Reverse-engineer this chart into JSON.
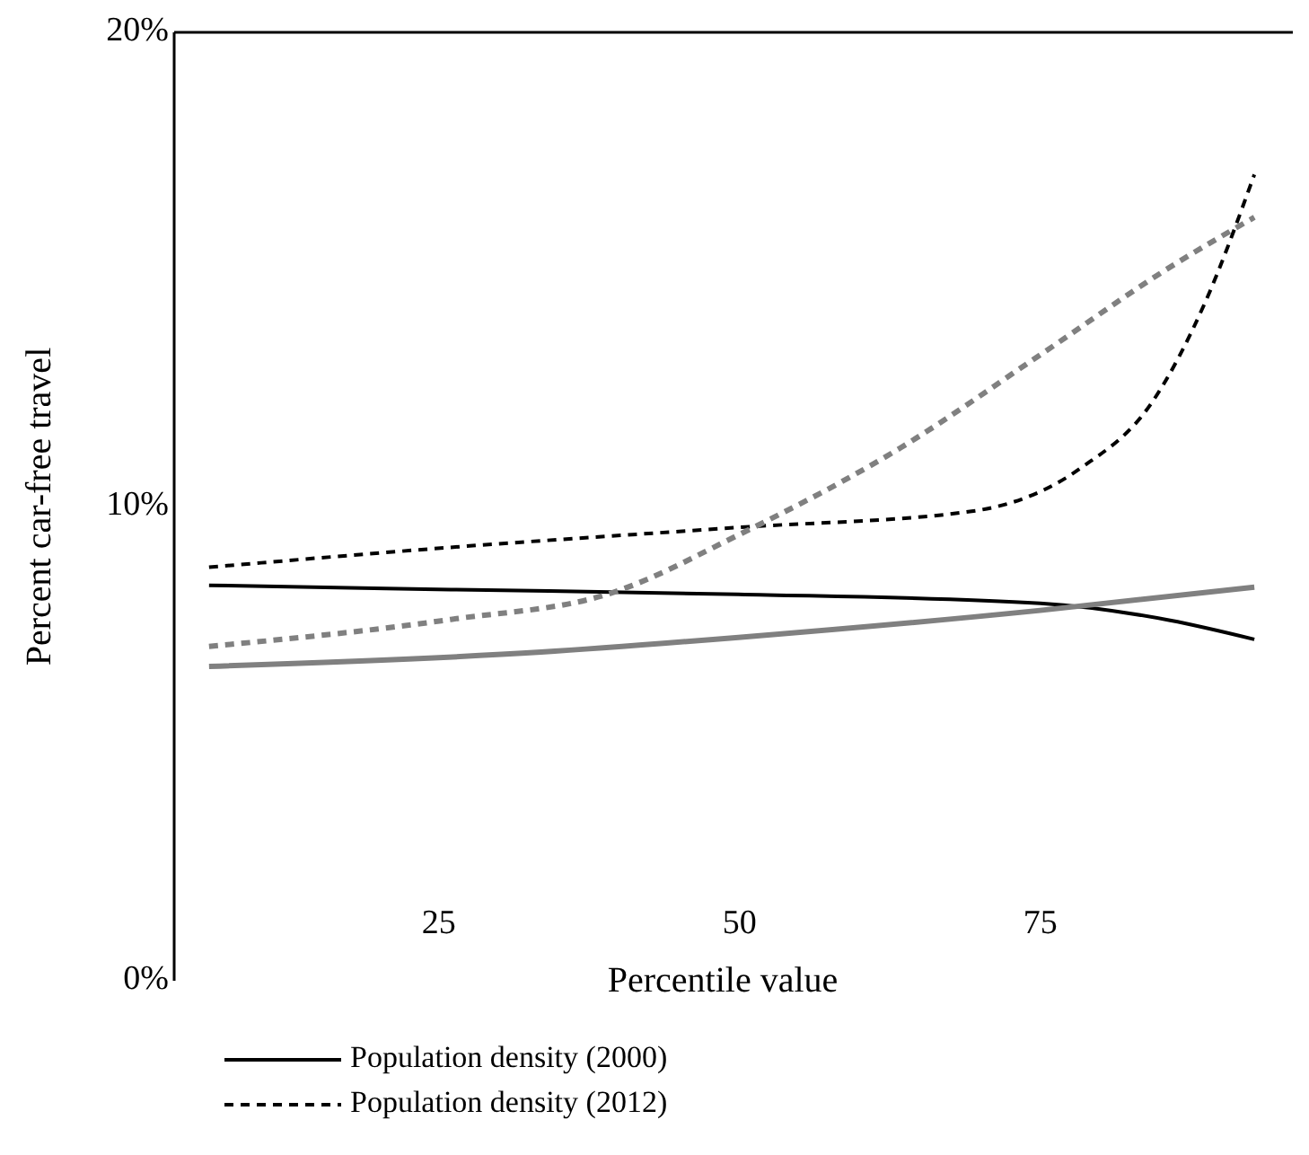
{
  "chart_data": {
    "type": "line",
    "xlabel": "Percentile value",
    "ylabel": "Percent car-free travel",
    "xlim": [
      3,
      96
    ],
    "xticks": [
      25,
      50,
      75
    ],
    "ylim": [
      0,
      20
    ],
    "yticks": [
      {
        "value": 0,
        "label": "0%"
      },
      {
        "value": 10,
        "label": "10%"
      },
      {
        "value": 20,
        "label": "20%"
      }
    ],
    "legend": "bottom",
    "grid": false,
    "series": [
      {
        "name": "Population density (2000)",
        "color": "#000000",
        "line_style": "solid",
        "x": [
          5.9,
          26,
          49.9,
          75,
          85.8,
          92.8
        ],
        "values": [
          8.34,
          8.25,
          8.15,
          7.96,
          7.6,
          7.2
        ]
      },
      {
        "color": "#808080",
        "line_style": "solid",
        "x": [
          5.9,
          33.5,
          49.9,
          75,
          92.8
        ],
        "values": [
          6.63,
          6.93,
          7.24,
          7.81,
          8.3
        ]
      },
      {
        "name": "Population density (2012)",
        "color": "#000000",
        "line_style": "dashed",
        "x": [
          5.9,
          26,
          49.9,
          69.3,
          78.3,
          84.3,
          88.7,
          92.8
        ],
        "values": [
          8.72,
          9.14,
          9.56,
          9.9,
          10.8,
          12.2,
          14.3,
          17.0
        ]
      },
      {
        "color": "#808080",
        "line_style": "dashed",
        "x": [
          5.9,
          26,
          39.5,
          49.9,
          63.4,
          75,
          85.8,
          92.8
        ],
        "values": [
          7.05,
          7.62,
          8.19,
          9.4,
          11.24,
          13.2,
          15.05,
          16.1
        ]
      }
    ]
  }
}
